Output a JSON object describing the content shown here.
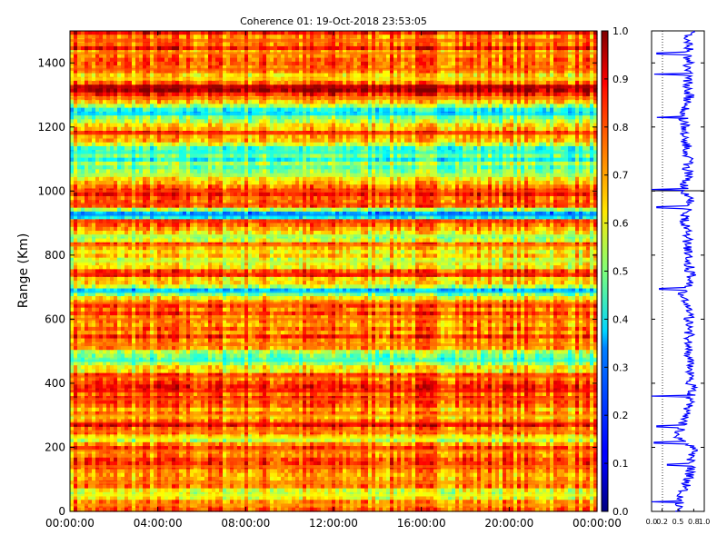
{
  "chart_data": [
    {
      "type": "heatmap",
      "title": "Coherence 01: 19-Oct-2018 23:53:05",
      "xlabel": "",
      "ylabel": "Range (Km)",
      "x_ticks": [
        "00:00:00",
        "04:00:00",
        "08:00:00",
        "12:00:00",
        "16:00:00",
        "20:00:00",
        "00:00:00"
      ],
      "x_range": [
        "00:00:00",
        "24:00:00"
      ],
      "y_ticks": [
        0,
        200,
        400,
        600,
        800,
        1000,
        1200,
        1400
      ],
      "ylim": [
        0,
        1500
      ],
      "colorbar": {
        "ticks": [
          "0.0",
          "0.1",
          "0.2",
          "0.3",
          "0.4",
          "0.5",
          "0.6",
          "0.7",
          "0.8",
          "0.9",
          "1.0"
        ],
        "range": [
          0,
          1
        ],
        "colormap": "jet"
      },
      "grid": false,
      "row_profile": [
        {
          "range_km": 20,
          "coherence": 0.72
        },
        {
          "range_km": 50,
          "coherence": 0.62
        },
        {
          "range_km": 90,
          "coherence": 0.72
        },
        {
          "range_km": 140,
          "coherence": 0.75
        },
        {
          "range_km": 190,
          "coherence": 0.78
        },
        {
          "range_km": 230,
          "coherence": 0.62
        },
        {
          "range_km": 250,
          "coherence": 0.75
        },
        {
          "range_km": 275,
          "coherence": 0.86
        },
        {
          "range_km": 300,
          "coherence": 0.72
        },
        {
          "range_km": 350,
          "coherence": 0.78
        },
        {
          "range_km": 375,
          "coherence": 0.87
        },
        {
          "range_km": 420,
          "coherence": 0.8
        },
        {
          "range_km": 470,
          "coherence": 0.4
        },
        {
          "range_km": 520,
          "coherence": 0.77
        },
        {
          "range_km": 600,
          "coherence": 0.78
        },
        {
          "range_km": 650,
          "coherence": 0.8
        },
        {
          "range_km": 685,
          "coherence": 0.33
        },
        {
          "range_km": 740,
          "coherence": 0.84
        },
        {
          "range_km": 780,
          "coherence": 0.55
        },
        {
          "range_km": 830,
          "coherence": 0.75
        },
        {
          "range_km": 860,
          "coherence": 0.55
        },
        {
          "range_km": 905,
          "coherence": 0.82
        },
        {
          "range_km": 925,
          "coherence": 0.25
        },
        {
          "range_km": 960,
          "coherence": 0.82
        },
        {
          "range_km": 1000,
          "coherence": 0.8
        },
        {
          "range_km": 1050,
          "coherence": 0.55
        },
        {
          "range_km": 1120,
          "coherence": 0.4
        },
        {
          "range_km": 1180,
          "coherence": 0.82
        },
        {
          "range_km": 1240,
          "coherence": 0.35
        },
        {
          "range_km": 1290,
          "coherence": 0.78
        },
        {
          "range_km": 1325,
          "coherence": 0.95
        },
        {
          "range_km": 1350,
          "coherence": 0.65
        },
        {
          "range_km": 1380,
          "coherence": 0.8
        },
        {
          "range_km": 1430,
          "coherence": 0.78
        },
        {
          "range_km": 1470,
          "coherence": 0.8
        }
      ]
    },
    {
      "type": "line",
      "title": "",
      "xlabel": "",
      "ylabel": "",
      "x_ticks": [
        "0.0",
        "0.2",
        "0.5",
        "0.8",
        "1.0"
      ],
      "xlim": [
        0,
        1
      ],
      "ylim": [
        0,
        1500
      ],
      "mean_profile": [
        {
          "range_km": 30,
          "coherence": 0.55
        },
        {
          "range_km": 120,
          "coherence": 0.72
        },
        {
          "range_km": 200,
          "coherence": 0.78
        },
        {
          "range_km": 230,
          "coherence": 0.5
        },
        {
          "range_km": 300,
          "coherence": 0.65
        },
        {
          "range_km": 370,
          "coherence": 0.78
        },
        {
          "range_km": 420,
          "coherence": 0.72
        },
        {
          "range_km": 480,
          "coherence": 0.7
        },
        {
          "range_km": 540,
          "coherence": 0.72
        },
        {
          "range_km": 590,
          "coherence": 0.7
        },
        {
          "range_km": 640,
          "coherence": 0.72
        },
        {
          "range_km": 680,
          "coherence": 0.6
        },
        {
          "range_km": 730,
          "coherence": 0.75
        },
        {
          "range_km": 790,
          "coherence": 0.7
        },
        {
          "range_km": 850,
          "coherence": 0.68
        },
        {
          "range_km": 920,
          "coherence": 0.62
        },
        {
          "range_km": 970,
          "coherence": 0.72
        },
        {
          "range_km": 1000,
          "coherence": 0.62
        },
        {
          "range_km": 1050,
          "coherence": 0.68
        },
        {
          "range_km": 1100,
          "coherence": 0.7
        },
        {
          "range_km": 1160,
          "coherence": 0.65
        },
        {
          "range_km": 1240,
          "coherence": 0.6
        },
        {
          "range_km": 1300,
          "coherence": 0.72
        },
        {
          "range_km": 1360,
          "coherence": 0.68
        },
        {
          "range_km": 1420,
          "coherence": 0.7
        },
        {
          "range_km": 1480,
          "coherence": 0.72
        }
      ],
      "dips": [
        {
          "range_km": 30,
          "coherence": 0.0
        },
        {
          "range_km": 145,
          "coherence": 0.3
        },
        {
          "range_km": 215,
          "coherence": 0.05
        },
        {
          "range_km": 265,
          "coherence": 0.1
        },
        {
          "range_km": 360,
          "coherence": 0.0
        },
        {
          "range_km": 695,
          "coherence": 0.15
        },
        {
          "range_km": 950,
          "coherence": 0.1
        },
        {
          "range_km": 1005,
          "coherence": 0.0
        },
        {
          "range_km": 1230,
          "coherence": 0.1
        },
        {
          "range_km": 1365,
          "coherence": 0.05
        },
        {
          "range_km": 1430,
          "coherence": 0.1
        }
      ]
    }
  ]
}
